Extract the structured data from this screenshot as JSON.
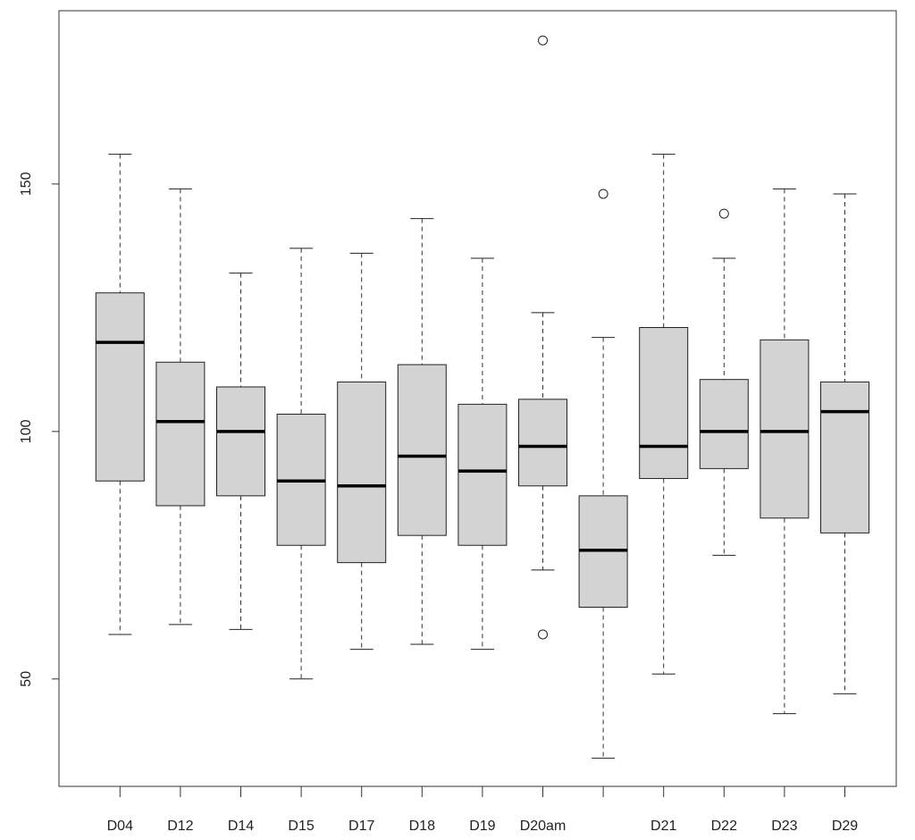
{
  "chart_data": {
    "type": "boxplot",
    "title": "",
    "xlabel": "",
    "ylabel": "",
    "ylim": [
      28.3,
      185
    ],
    "yticks": [
      50,
      100,
      150
    ],
    "grid": false,
    "box_fill": "#d3d3d3",
    "categories": [
      "D04",
      "D12",
      "D14",
      "D15",
      "D17",
      "D18",
      "D19",
      "D20am",
      "",
      "D21",
      "D22",
      "D23",
      "D29"
    ],
    "series": [
      {
        "name": "D04",
        "whisker_low": 59,
        "q1": 90,
        "median": 118,
        "q3": 128,
        "whisker_high": 156,
        "outliers": []
      },
      {
        "name": "D12",
        "whisker_low": 61,
        "q1": 85,
        "median": 102,
        "q3": 114,
        "whisker_high": 149,
        "outliers": []
      },
      {
        "name": "D14",
        "whisker_low": 60,
        "q1": 87,
        "median": 100,
        "q3": 109,
        "whisker_high": 132,
        "outliers": []
      },
      {
        "name": "D15",
        "whisker_low": 50,
        "q1": 77,
        "median": 90,
        "q3": 103.5,
        "whisker_high": 137,
        "outliers": []
      },
      {
        "name": "D17",
        "whisker_low": 56,
        "q1": 73.5,
        "median": 89,
        "q3": 110,
        "whisker_high": 136,
        "outliers": []
      },
      {
        "name": "D18",
        "whisker_low": 57,
        "q1": 79,
        "median": 95,
        "q3": 113.5,
        "whisker_high": 143,
        "outliers": []
      },
      {
        "name": "D19",
        "whisker_low": 56,
        "q1": 77,
        "median": 92,
        "q3": 105.5,
        "whisker_high": 135,
        "outliers": []
      },
      {
        "name": "D20am",
        "whisker_low": 72,
        "q1": 89,
        "median": 97,
        "q3": 106.5,
        "whisker_high": 124,
        "outliers": [
          179,
          59
        ]
      },
      {
        "name": "",
        "whisker_low": 34,
        "q1": 64.5,
        "median": 76,
        "q3": 87,
        "whisker_high": 119,
        "outliers": [
          148
        ]
      },
      {
        "name": "D21",
        "whisker_low": 51,
        "q1": 90.5,
        "median": 97,
        "q3": 121,
        "whisker_high": 156,
        "outliers": []
      },
      {
        "name": "D22",
        "whisker_low": 75,
        "q1": 92.5,
        "median": 100,
        "q3": 110.5,
        "whisker_high": 135,
        "outliers": [
          144
        ]
      },
      {
        "name": "D23",
        "whisker_low": 43,
        "q1": 82.5,
        "median": 100,
        "q3": 118.5,
        "whisker_high": 149,
        "outliers": []
      },
      {
        "name": "D29",
        "whisker_low": 47,
        "q1": 79.5,
        "median": 104,
        "q3": 110,
        "whisker_high": 148,
        "outliers": []
      }
    ]
  }
}
